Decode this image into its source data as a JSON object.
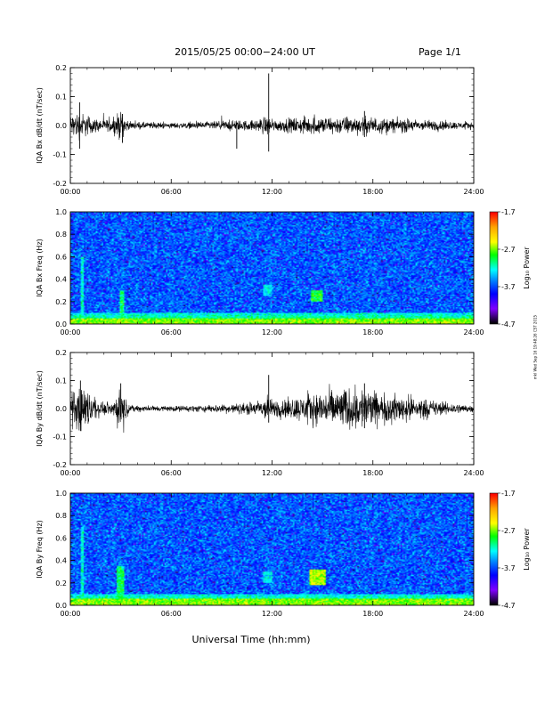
{
  "header": {
    "title": "2015/05/25  00:00−24:00 UT",
    "page": "Page 1/1"
  },
  "stamp": "mkl Wed Sep 16 19:48:26 CST 2015",
  "colors": {
    "trace": "#000000",
    "colorbar": [
      "#ff0000",
      "#ffa500",
      "#ffff00",
      "#00ff00",
      "#00ffff",
      "#0080ff",
      "#0000ff",
      "#8000ff",
      "#000000"
    ]
  },
  "chart_data": [
    {
      "type": "line",
      "panel": "bx-timeseries",
      "ylabel": "IQA Bx dB/dt (nT/sec)",
      "ylim": [
        -0.2,
        0.2
      ],
      "yticks": [
        "-0.2",
        "-0.1",
        "0.0",
        "0.1",
        "0.2"
      ],
      "xlim": [
        0,
        24
      ],
      "xticks": [
        "00:00",
        "06:00",
        "12:00",
        "18:00",
        "24:00"
      ],
      "series": [
        {
          "x": [
            0,
            0.5,
            1,
            1.5,
            2,
            2.5,
            3,
            3.5,
            4,
            6,
            8,
            9.5,
            10,
            11,
            11.75,
            11.9,
            12,
            13,
            14,
            15,
            16,
            17,
            18,
            19,
            20,
            21,
            22,
            23,
            24
          ],
          "envelope": [
            0.03,
            0.04,
            0.03,
            0.02,
            0.015,
            0.02,
            0.04,
            0.01,
            0.01,
            0.008,
            0.01,
            0.015,
            0.015,
            0.015,
            0.03,
            0.02,
            0.015,
            0.02,
            0.025,
            0.025,
            0.025,
            0.025,
            0.025,
            0.02,
            0.02,
            0.015,
            0.015,
            0.01,
            0.01
          ],
          "spikes": [
            {
              "x": 0.55,
              "min": -0.08,
              "max": 0.08
            },
            {
              "x": 3.1,
              "min": -0.06,
              "max": 0.04
            },
            {
              "x": 9.9,
              "min": -0.08,
              "max": 0.01
            },
            {
              "x": 11.8,
              "min": -0.09,
              "max": 0.18
            },
            {
              "x": 17.5,
              "min": -0.04,
              "max": 0.05
            }
          ]
        }
      ]
    },
    {
      "type": "heatmap",
      "panel": "bx-spectrogram",
      "ylabel": "IQA Bx Freq (Hz)",
      "ylim": [
        0.0,
        1.0
      ],
      "yticks": [
        "0.0",
        "0.2",
        "0.4",
        "0.6",
        "0.8",
        "1.0"
      ],
      "xlim": [
        0,
        24
      ],
      "xticks": [
        "00:00",
        "06:00",
        "12:00",
        "18:00",
        "24:00"
      ],
      "colorbar": {
        "label": "Log₁₀ Power",
        "range": [
          -4.7,
          -1.7
        ],
        "ticks": [
          "-1.7",
          "-2.7",
          "-3.7",
          "-4.7"
        ]
      },
      "features": [
        {
          "x": [
            0,
            24
          ],
          "y": [
            0.0,
            0.05
          ],
          "level": -2.7
        },
        {
          "x": [
            0.6,
            0.8
          ],
          "y": [
            0.0,
            0.6
          ],
          "level": -3.2
        },
        {
          "x": [
            2.9,
            3.2
          ],
          "y": [
            0.0,
            0.3
          ],
          "level": -3.0
        },
        {
          "x": [
            11.5,
            12.0
          ],
          "y": [
            0.25,
            0.35
          ],
          "level": -3.3
        },
        {
          "x": [
            14.3,
            15.0
          ],
          "y": [
            0.2,
            0.3
          ],
          "level": -2.9
        }
      ]
    },
    {
      "type": "line",
      "panel": "by-timeseries",
      "ylabel": "IQA By dB/dt (nT/sec)",
      "ylim": [
        -0.2,
        0.2
      ],
      "yticks": [
        "-0.2",
        "-0.1",
        "0.0",
        "0.1",
        "0.2"
      ],
      "xlim": [
        0,
        24
      ],
      "xticks": [
        "00:00",
        "06:00",
        "12:00",
        "18:00",
        "24:00"
      ],
      "series": [
        {
          "x": [
            0,
            0.5,
            1,
            1.5,
            2,
            2.5,
            3,
            3.5,
            4,
            6,
            8,
            10,
            11,
            11.75,
            12,
            13,
            14,
            15,
            16,
            17,
            17.5,
            18,
            19,
            20,
            21,
            22,
            23,
            24
          ],
          "envelope": [
            0.04,
            0.07,
            0.06,
            0.03,
            0.015,
            0.02,
            0.06,
            0.01,
            0.01,
            0.008,
            0.01,
            0.015,
            0.02,
            0.04,
            0.025,
            0.03,
            0.04,
            0.05,
            0.06,
            0.06,
            0.065,
            0.05,
            0.04,
            0.04,
            0.03,
            0.02,
            0.015,
            0.01
          ],
          "spikes": [
            {
              "x": 0.6,
              "min": -0.08,
              "max": 0.1
            },
            {
              "x": 3.0,
              "min": -0.03,
              "max": 0.09
            },
            {
              "x": 11.8,
              "min": -0.05,
              "max": 0.12
            },
            {
              "x": 17.5,
              "min": -0.07,
              "max": 0.09
            }
          ]
        }
      ]
    },
    {
      "type": "heatmap",
      "panel": "by-spectrogram",
      "ylabel": "IQA By Freq (Hz)",
      "xlabel": "Universal Time (hh:mm)",
      "ylim": [
        0.0,
        1.0
      ],
      "yticks": [
        "0.0",
        "0.2",
        "0.4",
        "0.6",
        "0.8",
        "1.0"
      ],
      "xlim": [
        0,
        24
      ],
      "xticks": [
        "00:00",
        "06:00",
        "12:00",
        "18:00",
        "24:00"
      ],
      "colorbar": {
        "label": "Log₁₀ Power",
        "range": [
          -4.7,
          -1.7
        ],
        "ticks": [
          "-1.7",
          "-2.7",
          "-3.7",
          "-4.7"
        ]
      },
      "features": [
        {
          "x": [
            0,
            24
          ],
          "y": [
            0.0,
            0.06
          ],
          "level": -2.7
        },
        {
          "x": [
            0.6,
            0.8
          ],
          "y": [
            0.0,
            0.7
          ],
          "level": -3.2
        },
        {
          "x": [
            2.8,
            3.2
          ],
          "y": [
            0.0,
            0.35
          ],
          "level": -3.0
        },
        {
          "x": [
            11.5,
            12.0
          ],
          "y": [
            0.2,
            0.3
          ],
          "level": -3.3
        },
        {
          "x": [
            14.2,
            15.2
          ],
          "y": [
            0.18,
            0.32
          ],
          "level": -2.6
        }
      ]
    }
  ]
}
